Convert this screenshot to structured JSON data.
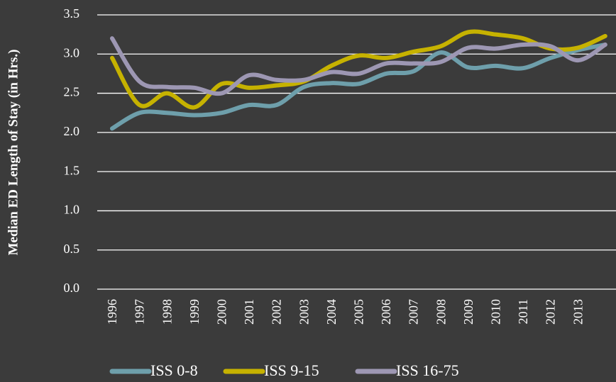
{
  "chart_data": {
    "type": "line",
    "y_label": "Median ED Length of Stay (in Hrs.)",
    "categories": [
      "1996",
      "1997",
      "1998",
      "1999",
      "2000",
      "2001",
      "2002",
      "2003",
      "2004",
      "2005",
      "2006",
      "2007",
      "2008",
      "2009",
      "2010",
      "2011",
      "2012",
      "2013",
      null
    ],
    "series": [
      {
        "name": "ISS 0-8",
        "color": "#6e9fab",
        "values": [
          2.05,
          2.25,
          2.25,
          2.22,
          2.25,
          2.35,
          2.35,
          2.58,
          2.63,
          2.62,
          2.75,
          2.78,
          3.02,
          2.83,
          2.85,
          2.82,
          2.95,
          3.05,
          3.12
        ]
      },
      {
        "name": "ISS 9-15",
        "color": "#c6b200",
        "values": [
          2.95,
          2.35,
          2.5,
          2.32,
          2.62,
          2.57,
          2.6,
          2.65,
          2.85,
          2.98,
          2.95,
          3.03,
          3.1,
          3.28,
          3.25,
          3.2,
          3.07,
          3.08,
          3.23
        ]
      },
      {
        "name": "ISS 16-75",
        "color": "#9d97b3",
        "values": [
          3.2,
          2.65,
          2.58,
          2.57,
          2.5,
          2.73,
          2.67,
          2.67,
          2.77,
          2.75,
          2.88,
          2.88,
          2.9,
          3.08,
          3.07,
          3.12,
          3.1,
          2.92,
          3.12
        ]
      }
    ],
    "ylim": [
      0,
      3.5
    ],
    "yticks": [
      {
        "value": 0,
        "label": "0.0"
      },
      0.5,
      {
        "value": 1,
        "label": "1.0"
      },
      1.5,
      {
        "value": 2,
        "label": "2.0"
      },
      2.5,
      {
        "value": 3,
        "label": "3.0"
      },
      3.5
    ],
    "grid": true,
    "legend": "bottom"
  }
}
